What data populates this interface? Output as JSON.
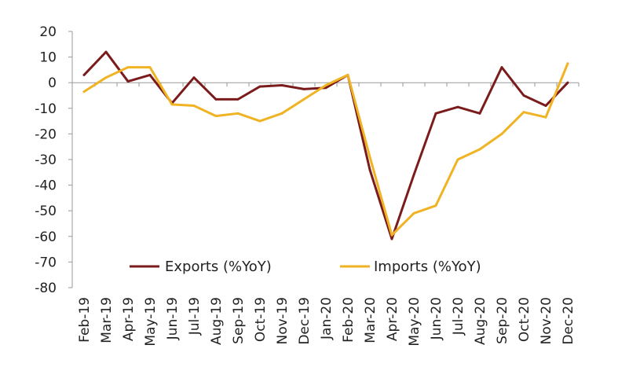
{
  "chart_data": {
    "type": "line",
    "title": "",
    "xlabel": "",
    "ylabel": "",
    "ylim": [
      -80,
      20
    ],
    "yticks": [
      20,
      10,
      0,
      -10,
      -20,
      -30,
      -40,
      -50,
      -60,
      -70,
      -80
    ],
    "ytick_labels": [
      "20",
      "10",
      "0",
      "-10",
      "-20",
      "-30",
      "-40",
      "-50",
      "-60",
      "-70",
      "-80"
    ],
    "grid": false,
    "legend": "bottom-inside",
    "categories": [
      "Feb-19",
      "Mar-19",
      "Apr-19",
      "May-19",
      "Jun-19",
      "Jul-19",
      "Aug-19",
      "Sep-19",
      "Oct-19",
      "Nov-19",
      "Dec-19",
      "Jan-20",
      "Feb-20",
      "Mar-20",
      "Apr-20",
      "May-20",
      "Jun-20",
      "Jul-20",
      "Aug-20",
      "Sep-20",
      "Oct-20",
      "Nov-20",
      "Dec-20"
    ],
    "series": [
      {
        "name": "Exports (%YoY)",
        "color": "#7b1c1c",
        "values": [
          3,
          12,
          0.5,
          3,
          -8,
          2,
          -6.5,
          -6.5,
          -1.5,
          -1,
          -2.5,
          -2,
          3,
          -34,
          -61,
          -36,
          -12,
          -9.5,
          -12,
          6,
          -5,
          -9,
          0
        ]
      },
      {
        "name": "Imports (%YoY)",
        "color": "#f0b323",
        "values": [
          -3.5,
          2,
          6,
          6,
          -8.5,
          -9,
          -13,
          -12,
          -15,
          -12,
          -6.5,
          -1,
          3,
          -29,
          -59.5,
          -51,
          -48,
          -30,
          -26,
          -20,
          -11.5,
          -13.5,
          7.5
        ]
      }
    ]
  }
}
